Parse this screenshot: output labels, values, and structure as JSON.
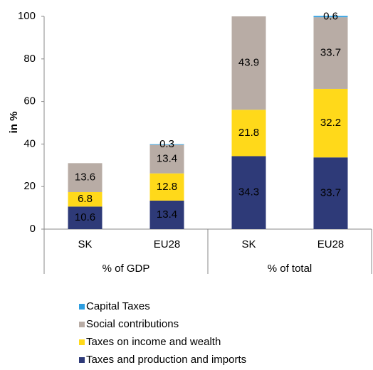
{
  "chart_data": {
    "type": "stacked-bar",
    "y_label": "in %",
    "categories": [
      "SK",
      "EU28",
      "SK",
      "EU28"
    ],
    "groups": [
      "% of GDP",
      "% of total"
    ],
    "series": [
      {
        "name": "Taxes and production and imports",
        "color": "#2e3a78",
        "values": [
          10.6,
          13.4,
          34.3,
          33.7
        ]
      },
      {
        "name": "Taxes on income and wealth",
        "color": "#ffd91a",
        "values": [
          6.8,
          12.8,
          21.8,
          32.2
        ]
      },
      {
        "name": "Social contributions",
        "color": "#b8aca5",
        "values": [
          13.6,
          13.4,
          43.9,
          33.7
        ]
      },
      {
        "name": "Capital Taxes",
        "color": "#2e9ee0",
        "values": [
          null,
          0.3,
          null,
          0.6
        ]
      }
    ],
    "ylim": [
      0,
      100
    ],
    "yticks": [
      0,
      20,
      40,
      60,
      80,
      100
    ],
    "grid": false
  }
}
